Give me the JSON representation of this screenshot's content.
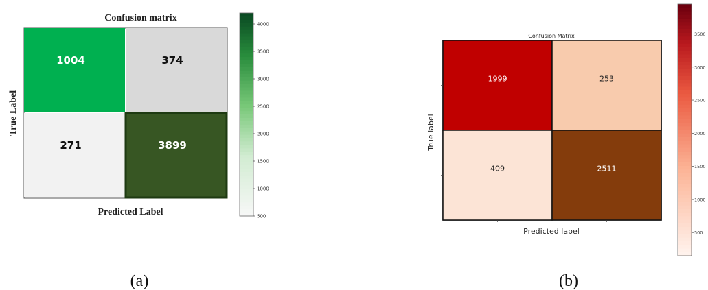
{
  "chart_data": [
    {
      "type": "heatmap",
      "title": "Confusion matrix",
      "xlabel": "Predicted Label",
      "ylabel": "True Label",
      "values": [
        [
          1004,
          374
        ],
        [
          271,
          3899
        ]
      ],
      "colorbar": {
        "ticks": [
          500,
          1000,
          1500,
          2000,
          2500,
          3000,
          3500,
          4000
        ],
        "range": [
          500,
          4200
        ]
      },
      "colormap": "Greens",
      "caption": "(a)"
    },
    {
      "type": "heatmap",
      "title": "Confusion Matrix",
      "xlabel": "Predicted label",
      "ylabel": "True label",
      "values": [
        [
          1999,
          253
        ],
        [
          409,
          2511
        ]
      ],
      "colorbar": {
        "ticks": [
          500,
          1000,
          1500,
          2000,
          2500,
          3000,
          3500
        ],
        "range": [
          150,
          3950
        ]
      },
      "colormap": "Reds",
      "caption": "(b)"
    }
  ]
}
